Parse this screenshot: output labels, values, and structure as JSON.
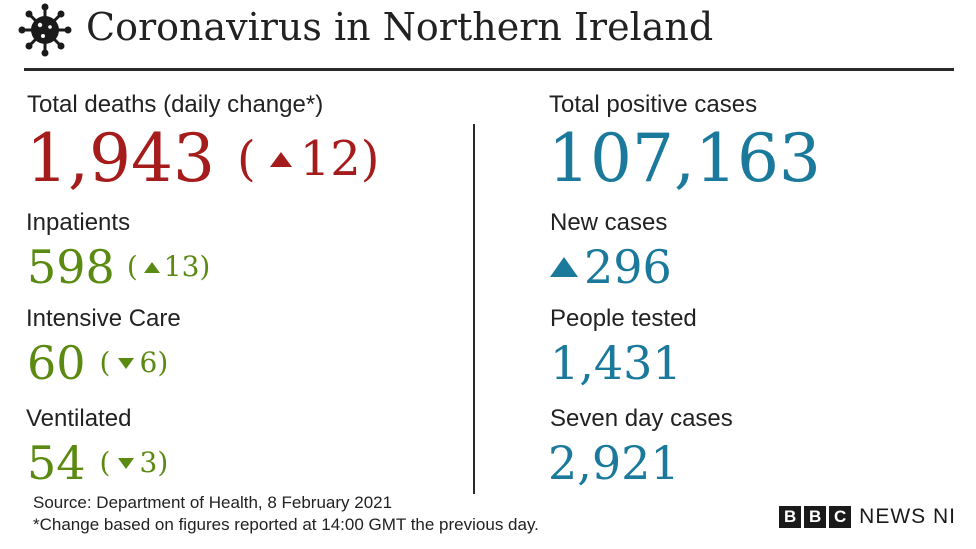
{
  "header": {
    "title": "Coronavirus in Northern Ireland"
  },
  "left": {
    "deaths": {
      "label": "Total deaths (daily change*)",
      "value": "1,943",
      "change": "12",
      "direction": "up"
    },
    "inpatients": {
      "label": "Inpatients",
      "value": "598",
      "change": "13",
      "direction": "up"
    },
    "intensive_care": {
      "label": "Intensive Care",
      "value": "60",
      "change": "6",
      "direction": "down"
    },
    "ventilated": {
      "label": "Ventilated",
      "value": "54",
      "change": "3",
      "direction": "down"
    }
  },
  "right": {
    "total_positive": {
      "label": "Total positive cases",
      "value": "107,163"
    },
    "new_cases": {
      "label": "New cases",
      "value": "296",
      "direction": "up"
    },
    "people_tested": {
      "label": "People tested",
      "value": "1,431"
    },
    "seven_day": {
      "label": "Seven day cases",
      "value": "2,921"
    }
  },
  "footer": {
    "source": "Source: Department of Health, 8 February 2021",
    "note": "*Change based on figures reported at 14:00 GMT the previous day.",
    "brand_letters": [
      "B",
      "B",
      "C"
    ],
    "brand_text": "NEWS NI"
  },
  "colors": {
    "deaths": "#a51c1c",
    "hospital": "#5b8a12",
    "cases": "#1b7a9c",
    "text": "#222222"
  },
  "icons": {
    "header": "virus-icon",
    "up": "triangle-up-icon",
    "down": "triangle-down-icon"
  }
}
